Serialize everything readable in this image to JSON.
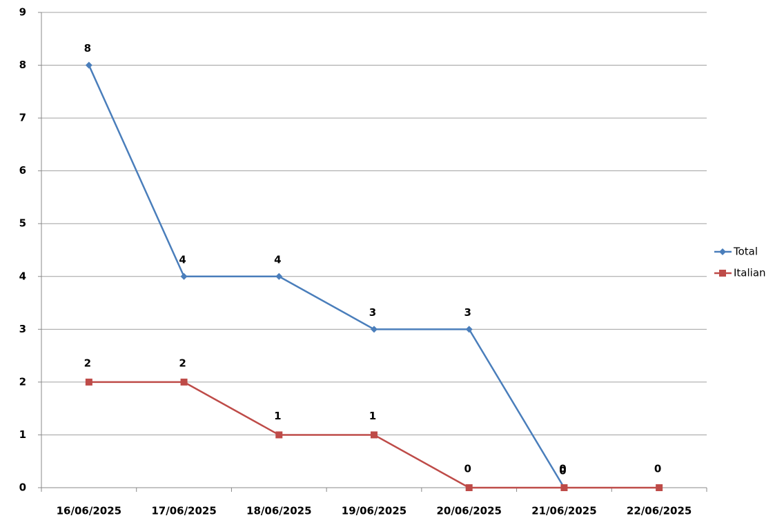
{
  "chart_data": {
    "type": "line",
    "categories": [
      "16/06/2025",
      "17/06/2025",
      "18/06/2025",
      "19/06/2025",
      "20/06/2025",
      "21/06/2025",
      "22/06/2025"
    ],
    "series": [
      {
        "name": "Total",
        "color": "#4a7ebb",
        "marker": "diamond",
        "values": [
          8,
          4,
          4,
          3,
          3,
          0,
          null
        ]
      },
      {
        "name": "Italian",
        "color": "#be4b48",
        "marker": "square",
        "values": [
          2,
          2,
          1,
          1,
          0,
          0,
          0
        ]
      }
    ],
    "ylim": [
      0,
      9
    ],
    "yticks": [
      0,
      1,
      2,
      3,
      4,
      5,
      6,
      7,
      8,
      9
    ],
    "grid": true,
    "legend": "right"
  }
}
